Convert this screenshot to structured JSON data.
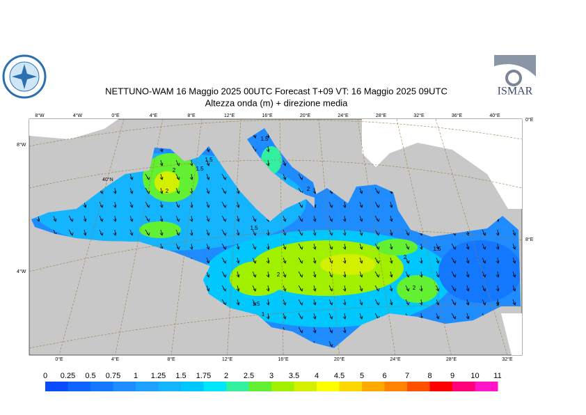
{
  "title": "NETTUNO-WAM  16   Maggio  2025 00UTC Forecast T+09 VT: 16   Maggio  2025 09UTC",
  "subtitle": "Altezza onda (m) + direzione media",
  "logo_text": "ISMAR",
  "top_labels": [
    "8°W",
    "4°W",
    "0°E",
    "4°E",
    "8°E",
    "12°E",
    "16°E",
    "20°E",
    "24°E",
    "28°E",
    "32°E",
    "36°E",
    "40°E"
  ],
  "bottom_labels": [
    "0°E",
    "4°E",
    "8°E",
    "12°E",
    "16°E",
    "20°E",
    "24°E",
    "28°E",
    "32°E"
  ],
  "left_labels": [
    "8°W",
    "40°N",
    "4°W"
  ],
  "right_labels": [
    "0°E",
    "8°E"
  ],
  "contour_labels": [
    "2",
    "1.5",
    "2",
    "1.5",
    "1.5",
    "2",
    "2",
    "2",
    "1.5",
    "2",
    "1.5",
    "1",
    "1.5",
    "1"
  ],
  "colorbar": {
    "levels": [
      0,
      0.25,
      0.5,
      0.75,
      1,
      1.25,
      1.5,
      1.75,
      2,
      2.5,
      3,
      3.5,
      4,
      4.5,
      5,
      6,
      7,
      8,
      9,
      10,
      11
    ],
    "colors": [
      "#0a4bff",
      "#0f64ff",
      "#1478ff",
      "#1e8cff",
      "#1ea0ff",
      "#14b4ff",
      "#00c8ff",
      "#00e6ff",
      "#32f0a0",
      "#64f032",
      "#a0f000",
      "#d2f000",
      "#ffff00",
      "#ffd700",
      "#ffaa00",
      "#ff8200",
      "#ff5000",
      "#ff0000",
      "#ff0078",
      "#ff14c8"
    ]
  }
}
